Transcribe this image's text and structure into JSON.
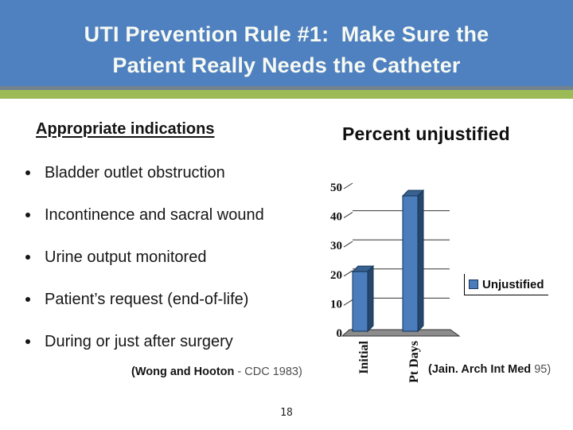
{
  "slide": {
    "title_line1": "UTI Prevention Rule #1:  Make Sure the",
    "title_line2": "Patient Really Needs the Catheter",
    "page_number": "18"
  },
  "left_panel": {
    "heading": "Appropriate indications",
    "bullets": [
      "Bladder outlet obstruction",
      "Incontinence and sacral wound",
      "Urine output monitored",
      "Patient’s request (end-of-life)",
      "During or just after surgery"
    ],
    "citation_bold": "(Wong and Hooton",
    "citation_rest": " - CDC 1983)"
  },
  "chart_section": {
    "title": "Percent unjustified",
    "legend_label": "Unjustified",
    "citation_bold": "(Jain. Arch Int Med",
    "citation_rest": " 95)"
  },
  "chart_data": {
    "type": "bar",
    "style": "3d-column",
    "title": "Percent unjustified",
    "categories": [
      "Initial",
      "Pt Days"
    ],
    "series": [
      {
        "name": "Unjustified",
        "values": [
          21,
          47
        ]
      }
    ],
    "xlabel": "",
    "ylabel": "",
    "ylim": [
      0,
      50
    ],
    "yticks": [
      0,
      10,
      20,
      30,
      40,
      50
    ],
    "grid": true,
    "legend_position": "right",
    "colors": {
      "bar_front": "#4b7dbc",
      "bar_side": "#26466b",
      "bar_top": "#37618e",
      "bar_outline": "#15355a",
      "floor": "#8c8c8c",
      "gridline": "#333333",
      "axis_text": "#0f0f0f"
    }
  },
  "theme_colors": {
    "header_bg": "#4f80bf",
    "band_gray": "#72828f",
    "band_green": "#9cbb57",
    "title_text": "#f7faf3"
  }
}
